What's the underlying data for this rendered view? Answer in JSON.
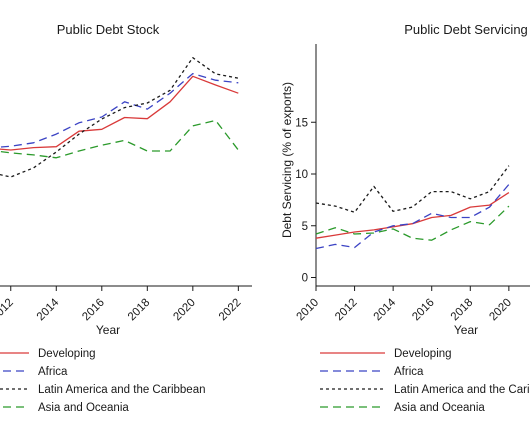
{
  "colors": {
    "developing": "#d93a3a",
    "africa": "#3b43c4",
    "latin": "#1a1a1a",
    "asia": "#2b9a2b"
  },
  "chart_data": [
    {
      "type": "line",
      "title": "Public Debt Stock",
      "xlabel": "Year",
      "ylabel": "",
      "xticks": [
        "2012",
        "2014",
        "2016",
        "2018",
        "2020",
        "2022"
      ],
      "x": [
        2011,
        2012,
        2013,
        2014,
        2015,
        2016,
        2017,
        2018,
        2019,
        2020,
        2021,
        2022
      ],
      "ylim": [
        0,
        100
      ],
      "series": [
        {
          "name": "Developing",
          "color": "developing",
          "dash": "solid",
          "values": [
            56.8,
            56.0,
            57.0,
            57.4,
            63.8,
            64.6,
            69.5,
            69.0,
            76.0,
            86.6,
            83.0,
            79.6
          ]
        },
        {
          "name": "Africa",
          "color": "africa",
          "dash": "dash",
          "values": [
            56.8,
            57.6,
            59.0,
            62.6,
            67.3,
            69.7,
            76.0,
            73.0,
            79.6,
            87.7,
            85.0,
            83.9
          ]
        },
        {
          "name": "Latin America and the Caribbean",
          "color": "latin",
          "dash": "dot",
          "values": [
            46.9,
            44.8,
            48.6,
            55.2,
            62.6,
            68.9,
            73.6,
            75.5,
            80.8,
            94.3,
            87.6,
            85.8
          ]
        },
        {
          "name": "Asia and Oceania",
          "color": "asia",
          "dash": "dash",
          "values": [
            56.0,
            54.8,
            54.0,
            52.8,
            55.6,
            58.0,
            60.0,
            55.6,
            55.6,
            66.0,
            68.3,
            56.0
          ]
        }
      ]
    },
    {
      "type": "line",
      "title": "Public Debt Servicing",
      "xlabel": "Year",
      "ylabel": "Debt Servicing (% of exports)",
      "yticks": [
        "0",
        "5",
        "10",
        "15"
      ],
      "xticks": [
        "2010",
        "2012",
        "2014",
        "2016",
        "2018",
        "2020"
      ],
      "x": [
        2010,
        2011,
        2012,
        2013,
        2014,
        2015,
        2016,
        2017,
        2018,
        2019,
        2020
      ],
      "ylim": [
        0,
        15
      ],
      "series": [
        {
          "name": "Developing",
          "color": "developing",
          "dash": "solid",
          "values": [
            3.8,
            4.1,
            4.4,
            4.6,
            4.9,
            5.2,
            5.8,
            6.0,
            6.8,
            7.0,
            8.2
          ]
        },
        {
          "name": "Africa",
          "color": "africa",
          "dash": "dash",
          "values": [
            2.8,
            3.2,
            2.9,
            4.4,
            5.0,
            5.2,
            6.2,
            5.8,
            5.8,
            6.8,
            9.0
          ]
        },
        {
          "name": "Latin America and the Caribbean",
          "color": "latin",
          "dash": "dot",
          "values": [
            7.2,
            6.9,
            6.3,
            8.8,
            6.4,
            6.8,
            8.3,
            8.3,
            7.6,
            8.3,
            10.8
          ]
        },
        {
          "name": "Asia and Oceania",
          "color": "asia",
          "dash": "dash",
          "values": [
            4.2,
            4.8,
            4.2,
            4.3,
            4.7,
            3.8,
            3.6,
            4.6,
            5.4,
            5.1,
            6.9
          ]
        }
      ]
    }
  ]
}
